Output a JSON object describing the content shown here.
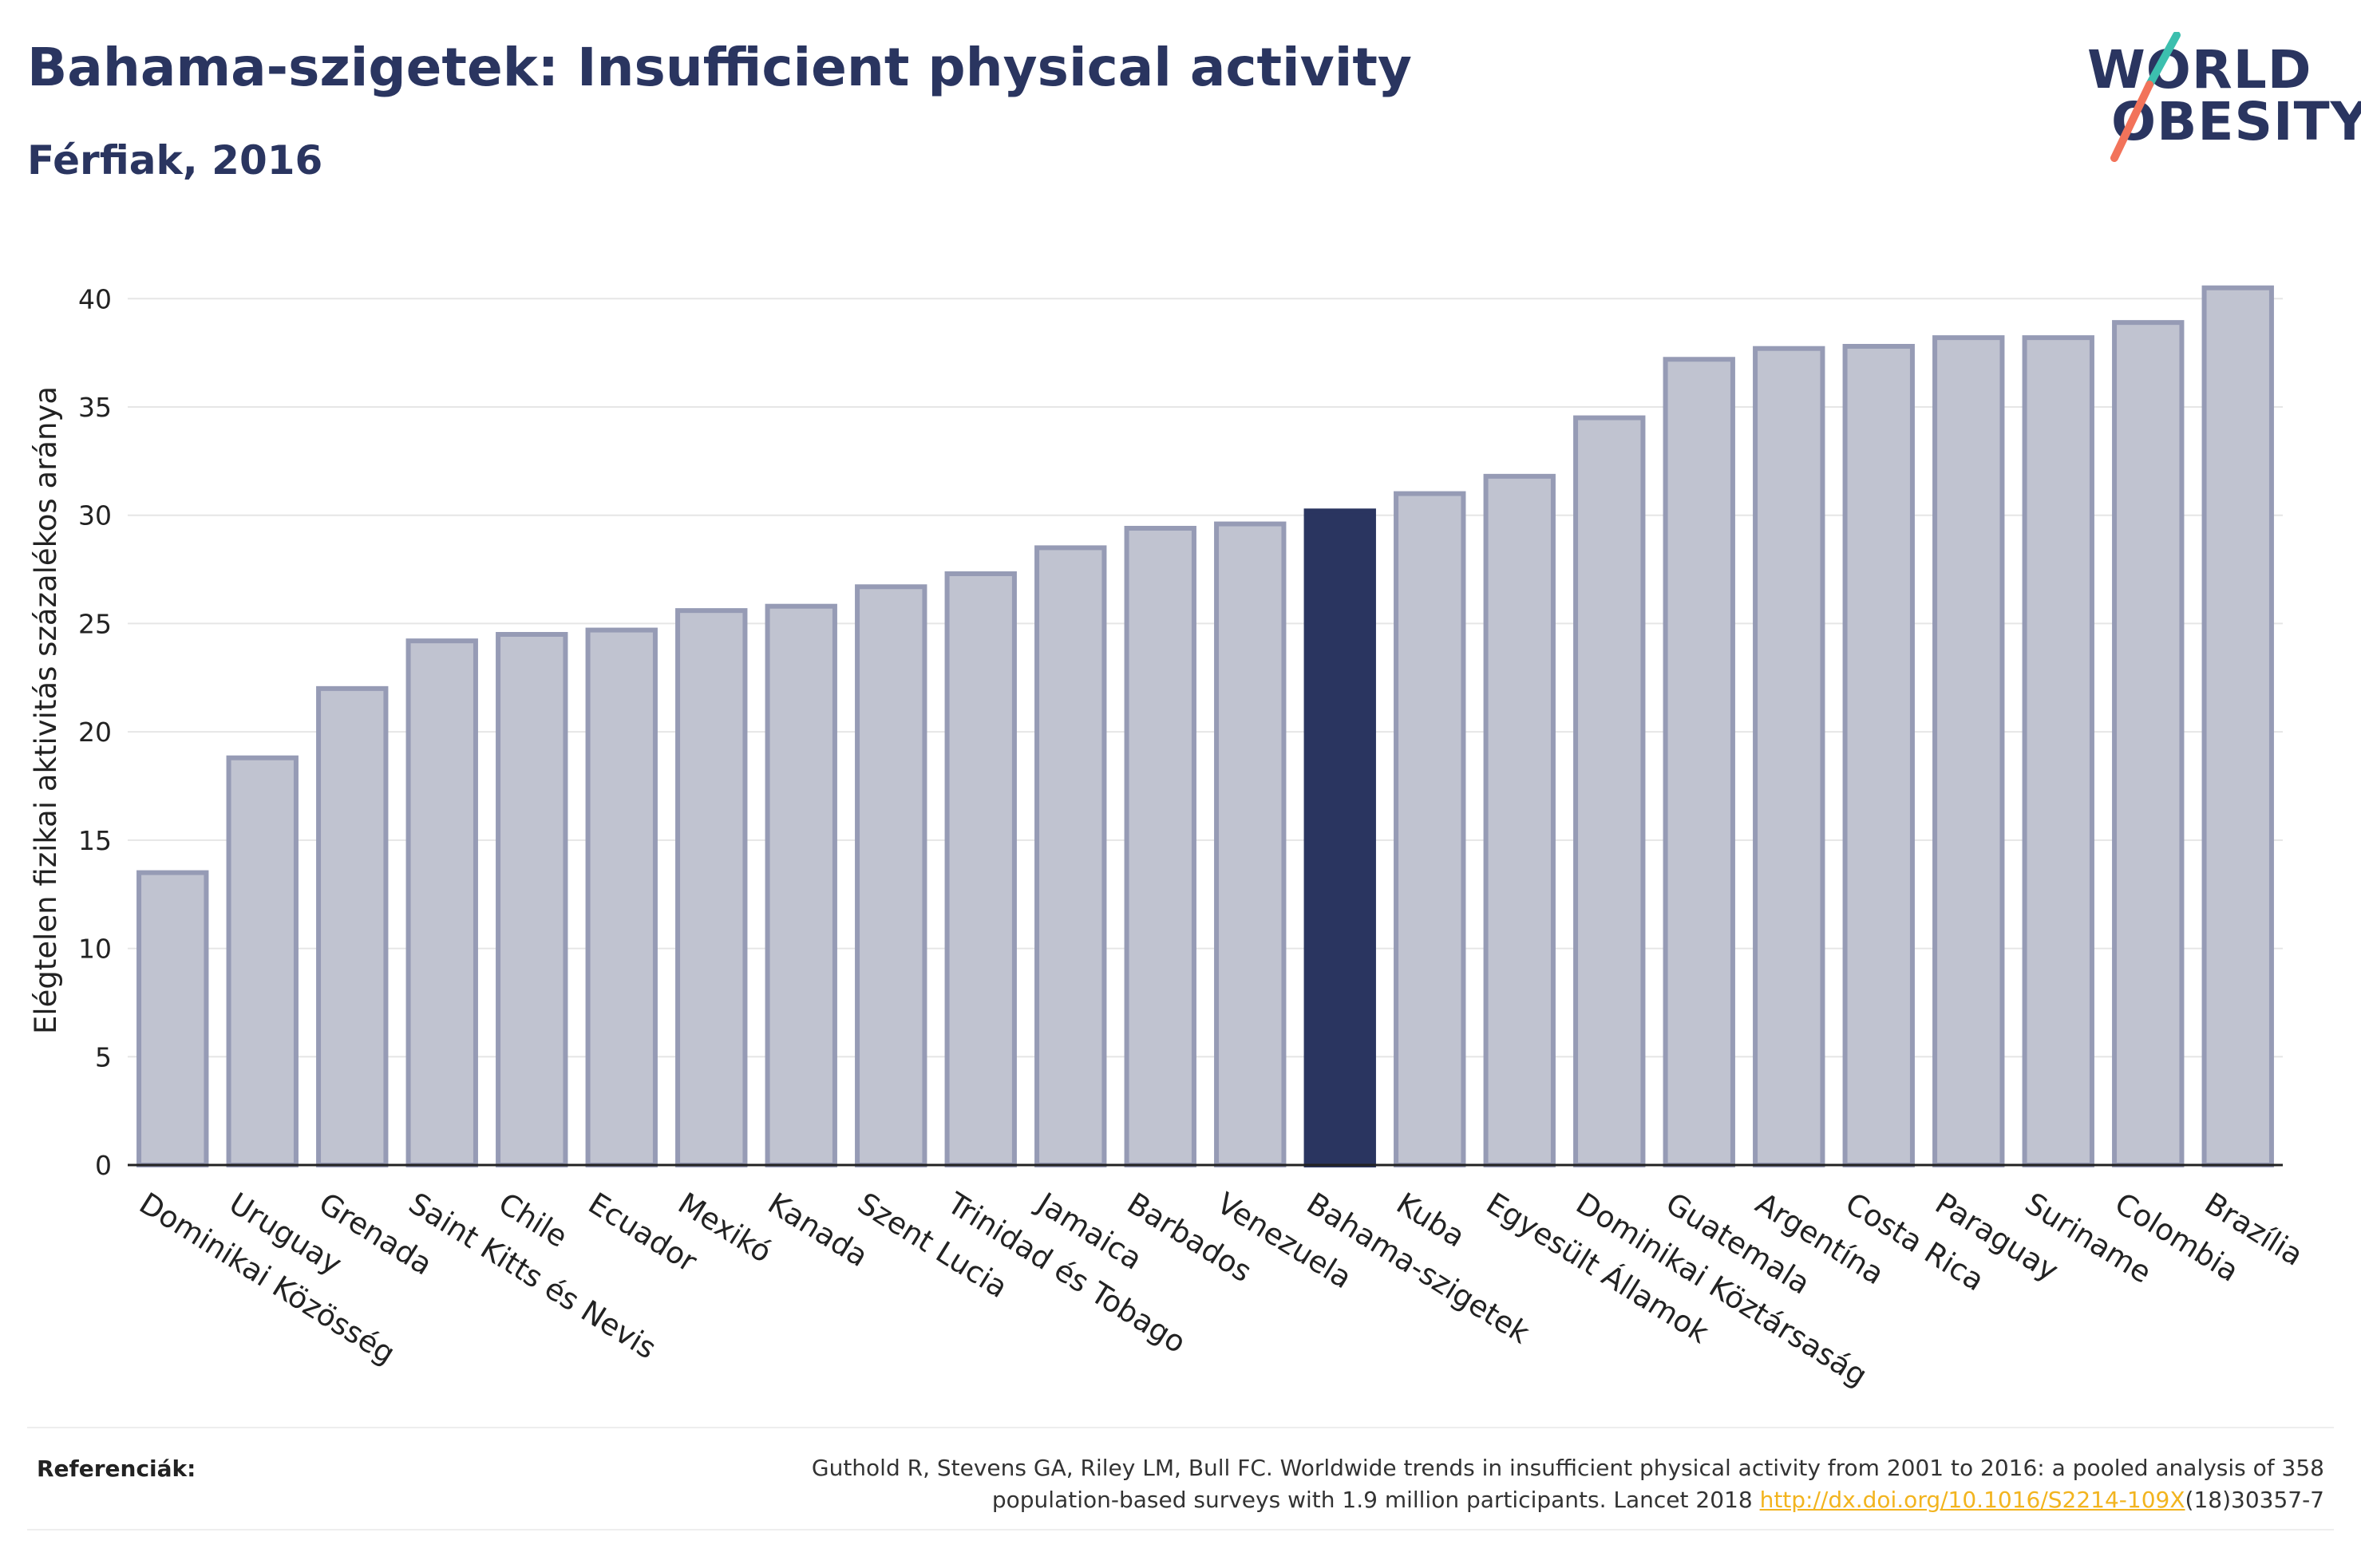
{
  "header": {
    "title": "Bahama-szigetek: Insufficient physical activity",
    "subtitle": "Férfiak, 2016"
  },
  "logo": {
    "line1": "WORLD",
    "line2": "OBESITY",
    "accent_colors": [
      "#3cbfae",
      "#f2735a"
    ]
  },
  "chart_data": {
    "type": "bar",
    "ylabel": "Elégtelen fizikai aktivitás százalékos aránya",
    "xlabel": "",
    "ylim": [
      0,
      42
    ],
    "yticks": [
      0,
      5,
      10,
      15,
      20,
      25,
      30,
      35,
      40
    ],
    "grid": true,
    "highlight": "Bahama-szigetek",
    "colors": {
      "bar": "#c0c3d0",
      "bar_border": "#969bb5",
      "highlight": "#2a3560",
      "grid": "#e6e6e6"
    },
    "categories": [
      "Dominikai Közösség",
      "Uruguay",
      "Grenada",
      "Saint Kitts és Nevis",
      "Chile",
      "Ecuador",
      "Mexikó",
      "Kanada",
      "Szent Lucia",
      "Trinidad és Tobago",
      "Jamaica",
      "Barbados",
      "Venezuela",
      "Bahama-szigetek",
      "Kuba",
      "Egyesült Államok",
      "Dominikai Köztársaság",
      "Guatemala",
      "Argentína",
      "Costa Rica",
      "Paraguay",
      "Suriname",
      "Colombia",
      "Brazília"
    ],
    "values": [
      13.5,
      18.8,
      22.0,
      24.2,
      24.5,
      24.7,
      25.6,
      25.8,
      26.7,
      27.3,
      28.5,
      29.4,
      29.6,
      30.2,
      31.0,
      31.8,
      34.5,
      37.2,
      37.7,
      37.8,
      38.2,
      38.2,
      38.9,
      40.5
    ]
  },
  "references": {
    "label": "Referenciák:",
    "text_line1": "Guthold R, Stevens GA, Riley LM, Bull FC. Worldwide trends in insufficient physical activity from 2001 to 2016: a pooled analysis of 358",
    "text_line2_pre": "population-based surveys with 1.9 million participants. Lancet 2018 ",
    "link": "http://dx.doi.org/10.1016/S2214-109X",
    "text_line2_post": "(18)30357-7"
  }
}
